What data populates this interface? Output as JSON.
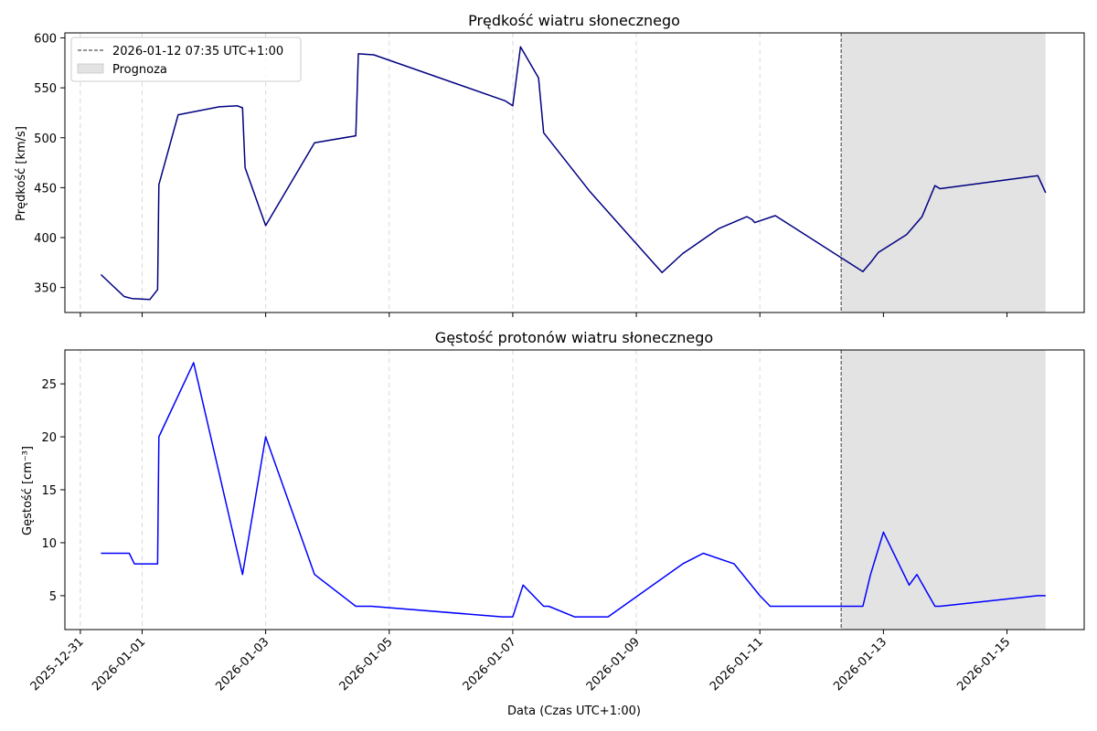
{
  "figure": {
    "xlabel": "Data (Czas UTC+1:00)"
  },
  "chart_data": [
    {
      "type": "line",
      "title": "Prędkość wiatru słonecznego",
      "ylabel": "Prędkość [km/s]",
      "xlabel": "",
      "color": "#000080",
      "ylim": [
        325,
        605
      ],
      "yticks": [
        350,
        400,
        450,
        500,
        550,
        600
      ],
      "grid": "vertical dashed",
      "legend": {
        "placement": "top-left",
        "entries": [
          {
            "label": "2026-01-12 07:35 UTC+1:00",
            "kind": "vline"
          },
          {
            "label": "Prognoza",
            "kind": "span"
          }
        ]
      },
      "series": [
        {
          "x": [
            "2025-12-31 08:00",
            "2025-12-31 17:00",
            "2025-12-31 20:00",
            "2026-01-01 03:00",
            "2026-01-01 06:00",
            "2026-01-01 06:30",
            "2026-01-01 14:00",
            "2026-01-02 06:00",
            "2026-01-02 13:00",
            "2026-01-02 15:00",
            "2026-01-02 16:00",
            "2026-01-03 00:00",
            "2026-01-03 19:00",
            "2026-01-04 11:00",
            "2026-01-04 12:00",
            "2026-01-04 18:00",
            "2026-01-06 21:00",
            "2026-01-07 00:00",
            "2026-01-07 03:00",
            "2026-01-07 10:00",
            "2026-01-07 12:00",
            "2026-01-08 06:00",
            "2026-01-09 10:00",
            "2026-01-09 18:00",
            "2026-01-10 08:00",
            "2026-01-10 19:00",
            "2026-01-10 21:00",
            "2026-01-10 22:00",
            "2026-01-11 06:00",
            "2026-01-12 16:00",
            "2026-01-12 19:00",
            "2026-01-12 22:00",
            "2026-01-13 09:00",
            "2026-01-13 15:00",
            "2026-01-13 20:00",
            "2026-01-13 22:00",
            "2026-01-15 12:00",
            "2026-01-15 15:00"
          ],
          "y": [
            363,
            341,
            339,
            338,
            348,
            453,
            523,
            531,
            532,
            530,
            470,
            412,
            495,
            502,
            584,
            583,
            537,
            532,
            591,
            560,
            505,
            446,
            365,
            384,
            409,
            421,
            418,
            415,
            422,
            366,
            375,
            385,
            403,
            421,
            452,
            449,
            462,
            445
          ]
        }
      ],
      "x_tick_labels": [
        "2025-12-31",
        "2026-01-01",
        "2026-01-03",
        "2026-01-05",
        "2026-01-07",
        "2026-01-09",
        "2026-01-11",
        "2026-01-13",
        "2026-01-15"
      ],
      "xlim": [
        "2025-12-30 18:00",
        "2026-01-16 06:00"
      ],
      "vline": "2026-01-12 07:35",
      "forecast_span": [
        "2026-01-12 07:35",
        "2026-01-15 15:00"
      ]
    },
    {
      "type": "line",
      "title": "Gęstość protonów wiatru słonecznego",
      "ylabel": "Gęstość [cm⁻³]",
      "xlabel": "Data (Czas UTC+1:00)",
      "color": "#0000ff",
      "ylim": [
        1.8,
        28.2
      ],
      "yticks": [
        5,
        10,
        15,
        20,
        25
      ],
      "grid": "vertical dashed",
      "series": [
        {
          "x": [
            "2025-12-31 08:00",
            "2025-12-31 19:00",
            "2025-12-31 21:00",
            "2026-01-01 06:00",
            "2026-01-01 06:30",
            "2026-01-01 20:00",
            "2026-01-02 15:00",
            "2026-01-03 00:00",
            "2026-01-03 19:00",
            "2026-01-04 11:00",
            "2026-01-04 17:00",
            "2026-01-06 20:00",
            "2026-01-07 00:00",
            "2026-01-07 04:00",
            "2026-01-07 12:00",
            "2026-01-07 14:00",
            "2026-01-08 00:00",
            "2026-01-08 13:00",
            "2026-01-09 18:00",
            "2026-01-10 02:00",
            "2026-01-10 14:00",
            "2026-01-11 00:00",
            "2026-01-11 04:00",
            "2026-01-12 16:00",
            "2026-01-12 19:00",
            "2026-01-13 00:00",
            "2026-01-13 10:00",
            "2026-01-13 13:00",
            "2026-01-13 20:00",
            "2026-01-13 22:00",
            "2026-01-15 12:00",
            "2026-01-15 15:00"
          ],
          "y": [
            9,
            9,
            8,
            8,
            20,
            27,
            7,
            20,
            7,
            4,
            4,
            3,
            3,
            6,
            4,
            4,
            3,
            3,
            8,
            9,
            8,
            5,
            4,
            4,
            7,
            11,
            6,
            7,
            4,
            4,
            5,
            5
          ]
        }
      ],
      "x_tick_labels": [
        "2025-12-31",
        "2026-01-01",
        "2026-01-03",
        "2026-01-05",
        "2026-01-07",
        "2026-01-09",
        "2026-01-11",
        "2026-01-13",
        "2026-01-15"
      ],
      "xlim": [
        "2025-12-30 18:00",
        "2026-01-16 06:00"
      ],
      "vline": "2026-01-12 07:35",
      "forecast_span": [
        "2026-01-12 07:35",
        "2026-01-15 15:00"
      ]
    }
  ]
}
